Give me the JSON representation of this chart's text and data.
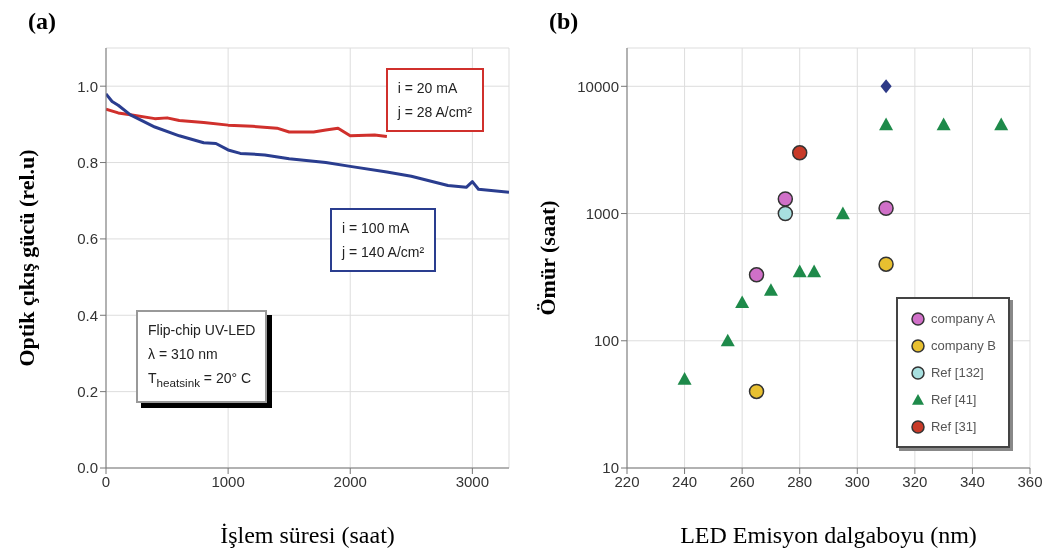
{
  "chart_data": [
    {
      "type": "line",
      "title": "(a)",
      "xlabel": "İşlem süresi (saat)",
      "ylabel": "Optik çıkış gücü (rel.u)",
      "xlim": [
        0,
        3300
      ],
      "ylim": [
        0,
        1.1
      ],
      "xticks": [
        0,
        1000,
        2000,
        3000
      ],
      "yticks": [
        {
          "value": 0,
          "label": "0.0"
        },
        0.2,
        0.4,
        0.6,
        0.8,
        {
          "value": 1,
          "label": "1.0"
        }
      ],
      "grid": true,
      "series": [
        {
          "color": "#d0302c",
          "x": [
            0,
            100,
            200,
            400,
            500,
            600,
            800,
            1000,
            1200,
            1400,
            1500,
            1700,
            1800,
            1900,
            2000,
            2200,
            2300
          ],
          "values": [
            0.94,
            0.93,
            0.925,
            0.915,
            0.917,
            0.91,
            0.905,
            0.898,
            0.895,
            0.89,
            0.88,
            0.88,
            0.885,
            0.89,
            0.87,
            0.872,
            0.868
          ]
        },
        {
          "color": "#2a3d8f",
          "x": [
            0,
            50,
            100,
            200,
            400,
            600,
            800,
            900,
            1000,
            1100,
            1300,
            1500,
            1800,
            2000,
            2300,
            2500,
            2800,
            2950,
            3000,
            3050,
            3300
          ],
          "values": [
            0.98,
            0.96,
            0.95,
            0.925,
            0.893,
            0.87,
            0.852,
            0.85,
            0.833,
            0.824,
            0.82,
            0.81,
            0.8,
            0.79,
            0.775,
            0.764,
            0.74,
            0.735,
            0.75,
            0.73,
            0.722
          ]
        }
      ],
      "annotations": [
        "i = 20 mA\nj = 28 A/cm²",
        "i = 100 mA\nj = 140 A/cm²",
        "Flip-chip UV-LED\nλ = 310 nm\nT$_{heatsink}$ = 20° C"
      ]
    },
    {
      "type": "scatter",
      "title": "(b)",
      "xlabel": "LED Emisyon dalgaboyu (nm)",
      "ylabel": "Ömür (saat)",
      "xlim": [
        220,
        360
      ],
      "ylim": [
        10,
        20000
      ],
      "xticks": [
        220,
        240,
        260,
        280,
        300,
        320,
        340,
        360
      ],
      "yticks": [
        10,
        100,
        1000,
        10000
      ],
      "log": "y",
      "grid": true,
      "legend": "bottom right",
      "series": [
        {
          "color": "#2e3a87",
          "marker": "diamond",
          "x": [
            310
          ],
          "values": [
            10000
          ]
        },
        {
          "name": "company A",
          "color": "#d070c8",
          "marker": "circle",
          "x": [
            265,
            275,
            310
          ],
          "values": [
            330,
            1300,
            1100
          ]
        },
        {
          "name": "company B",
          "color": "#e8c030",
          "marker": "circle",
          "x": [
            265,
            310
          ],
          "values": [
            40,
            400
          ]
        },
        {
          "name": "Ref [132]",
          "color": "#a8e0e0",
          "marker": "circle",
          "x": [
            275
          ],
          "values": [
            1000
          ]
        },
        {
          "name": "Ref [41]",
          "color": "#1e8a4a",
          "marker": "triangle",
          "x": [
            240,
            255,
            260,
            270,
            280,
            285,
            295,
            310,
            330,
            350
          ],
          "values": [
            50,
            100,
            200,
            250,
            350,
            350,
            1000,
            5000,
            5000,
            5000
          ]
        },
        {
          "name": "Ref [31]",
          "color": "#c83a28",
          "marker": "circle",
          "x": [
            280
          ],
          "values": [
            3000
          ]
        }
      ]
    }
  ]
}
